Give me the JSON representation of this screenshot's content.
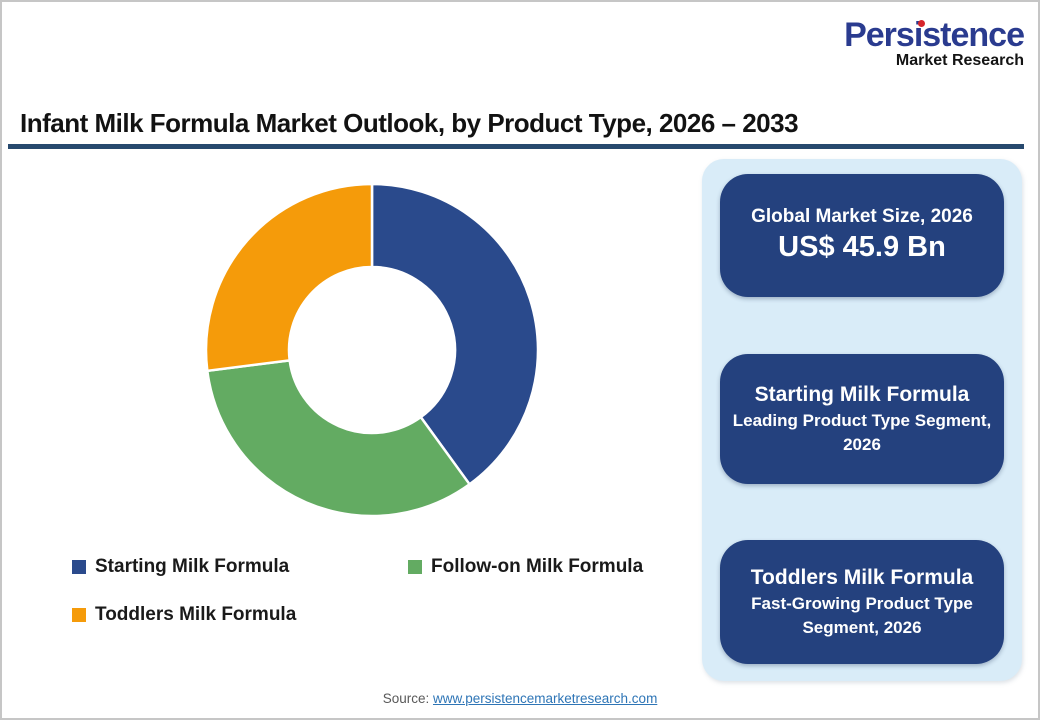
{
  "logo": {
    "title": "Persistence",
    "subtitle": "Market Research"
  },
  "header": {
    "title": "Infant Milk Formula Market Outlook, by Product Type, 2026 – 2033"
  },
  "chart_data": {
    "type": "pie",
    "donut": true,
    "title": "Infant Milk Formula Market Outlook, by Product Type, 2026 – 2033",
    "categories": [
      "Starting Milk Formula",
      "Follow-on Milk Formula",
      "Toddlers Milk Formula"
    ],
    "values": [
      40,
      33,
      27
    ],
    "colors": [
      "#2A4A8C",
      "#63AB62",
      "#F59B0A"
    ],
    "start_angle_deg": 0,
    "direction": "clockwise",
    "legend_position": "bottom"
  },
  "panel": {
    "cards": [
      {
        "title": "Global Market Size, 2026",
        "value": "US$ 45.9 Bn"
      },
      {
        "title": "Starting Milk Formula",
        "subtitle": "Leading Product Type Segment, 2026"
      },
      {
        "title": "Toddlers Milk Formula",
        "subtitle": "Fast-Growing Product Type Segment, 2026"
      }
    ]
  },
  "footer": {
    "source_label": "Source:",
    "source_link": "www.persistencemarketresearch.com"
  },
  "colors": {
    "panel_bg": "#D9ECF8",
    "card_bg": "#24417E",
    "title_underline": "#27496E",
    "logo_blue": "#2A3B8F",
    "logo_dot_red": "#D6252B",
    "link": "#2E75B6"
  }
}
